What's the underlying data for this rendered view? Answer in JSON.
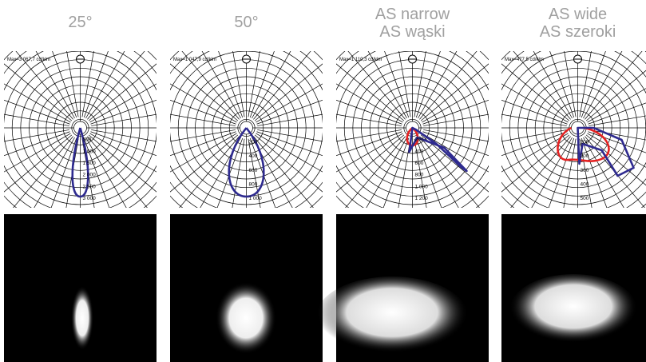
{
  "columns": [
    {
      "title": [
        "25°"
      ],
      "max_label": "Max=3 067,7 cd/klm",
      "scale_labels": [
        "500",
        "1 000",
        "1 500",
        "2 000",
        "2 500",
        "3 000"
      ]
    },
    {
      "title": [
        "50°"
      ],
      "max_label": "Max=1 047,9 cd/klm",
      "scale_labels": [
        "200",
        "400",
        "600",
        "800",
        "1 000"
      ]
    },
    {
      "title": [
        "AS narrow",
        "AS wąski"
      ],
      "max_label": "Max=1 110,3 cd/klm",
      "scale_labels": [
        "200",
        "400",
        "600",
        "800",
        "1 000",
        "1 200"
      ]
    },
    {
      "title": [
        "AS wide",
        "AS szeroki"
      ],
      "max_label": "Max=477,5 cd/klm",
      "scale_labels": [
        "100",
        "200",
        "300",
        "400",
        "500"
      ]
    }
  ]
}
